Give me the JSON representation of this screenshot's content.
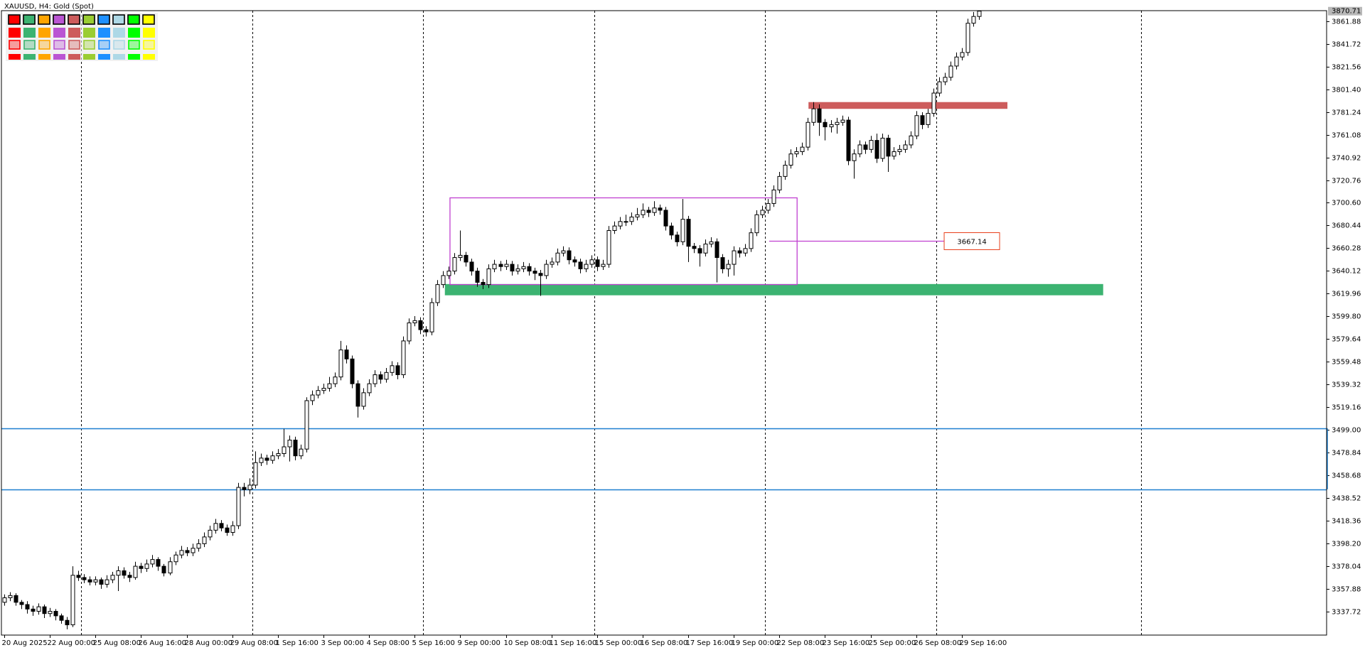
{
  "chart_data": {
    "type": "candlestick",
    "title": "XAUUSD, H4:  Gold (Spot)",
    "ohlc": [
      [
        3346,
        3353,
        3343,
        3350
      ],
      [
        3350,
        3355,
        3347,
        3352
      ],
      [
        3352,
        3354,
        3343,
        3346
      ],
      [
        3346,
        3348,
        3340,
        3344
      ],
      [
        3344,
        3347,
        3336,
        3340
      ],
      [
        3340,
        3343,
        3334,
        3338
      ],
      [
        3338,
        3345,
        3335,
        3342
      ],
      [
        3342,
        3344,
        3332,
        3336
      ],
      [
        3336,
        3341,
        3333,
        3338
      ],
      [
        3338,
        3340,
        3330,
        3334
      ],
      [
        3334,
        3336,
        3327,
        3330
      ],
      [
        3330,
        3333,
        3322,
        3326
      ],
      [
        3326,
        3378,
        3324,
        3370
      ],
      [
        3370,
        3374,
        3365,
        3368
      ],
      [
        3368,
        3371,
        3363,
        3366
      ],
      [
        3366,
        3369,
        3361,
        3364
      ],
      [
        3364,
        3369,
        3361,
        3366
      ],
      [
        3366,
        3368,
        3358,
        3362
      ],
      [
        3362,
        3370,
        3359,
        3366
      ],
      [
        3366,
        3373,
        3363,
        3370
      ],
      [
        3370,
        3378,
        3356,
        3374
      ],
      [
        3374,
        3377,
        3367,
        3370
      ],
      [
        3370,
        3373,
        3364,
        3368
      ],
      [
        3368,
        3382,
        3366,
        3378
      ],
      [
        3378,
        3381,
        3372,
        3376
      ],
      [
        3376,
        3384,
        3373,
        3380
      ],
      [
        3380,
        3388,
        3377,
        3384
      ],
      [
        3384,
        3386,
        3374,
        3378
      ],
      [
        3378,
        3380,
        3369,
        3372
      ],
      [
        3372,
        3386,
        3370,
        3382
      ],
      [
        3382,
        3391,
        3379,
        3388
      ],
      [
        3388,
        3396,
        3385,
        3392
      ],
      [
        3392,
        3395,
        3387,
        3390
      ],
      [
        3390,
        3398,
        3387,
        3394
      ],
      [
        3394,
        3402,
        3391,
        3398
      ],
      [
        3398,
        3408,
        3395,
        3404
      ],
      [
        3404,
        3414,
        3401,
        3410
      ],
      [
        3410,
        3420,
        3407,
        3416
      ],
      [
        3416,
        3419,
        3409,
        3412
      ],
      [
        3412,
        3415,
        3405,
        3408
      ],
      [
        3408,
        3418,
        3405,
        3414
      ],
      [
        3414,
        3452,
        3411,
        3448
      ],
      [
        3448,
        3452,
        3440,
        3446
      ],
      [
        3446,
        3456,
        3442,
        3450
      ],
      [
        3450,
        3480,
        3447,
        3470
      ],
      [
        3470,
        3478,
        3467,
        3474
      ],
      [
        3474,
        3477,
        3468,
        3472
      ],
      [
        3472,
        3480,
        3469,
        3476
      ],
      [
        3476,
        3482,
        3473,
        3478
      ],
      [
        3478,
        3500,
        3475,
        3484
      ],
      [
        3484,
        3494,
        3471,
        3490
      ],
      [
        3490,
        3493,
        3472,
        3476
      ],
      [
        3476,
        3486,
        3473,
        3482
      ],
      [
        3482,
        3528,
        3479,
        3525
      ],
      [
        3525,
        3534,
        3521,
        3530
      ],
      [
        3530,
        3538,
        3527,
        3534
      ],
      [
        3534,
        3540,
        3531,
        3536
      ],
      [
        3536,
        3546,
        3533,
        3540
      ],
      [
        3540,
        3550,
        3537,
        3546
      ],
      [
        3546,
        3578,
        3543,
        3570
      ],
      [
        3570,
        3574,
        3558,
        3562
      ],
      [
        3562,
        3565,
        3536,
        3540
      ],
      [
        3540,
        3543,
        3510,
        3520
      ],
      [
        3520,
        3536,
        3517,
        3532
      ],
      [
        3532,
        3544,
        3529,
        3540
      ],
      [
        3540,
        3552,
        3537,
        3548
      ],
      [
        3548,
        3551,
        3540,
        3544
      ],
      [
        3544,
        3554,
        3541,
        3550
      ],
      [
        3550,
        3560,
        3547,
        3556
      ],
      [
        3556,
        3559,
        3544,
        3548
      ],
      [
        3548,
        3582,
        3545,
        3578
      ],
      [
        3578,
        3598,
        3575,
        3594
      ],
      [
        3594,
        3600,
        3591,
        3596
      ],
      [
        3596,
        3599,
        3584,
        3588
      ],
      [
        3588,
        3591,
        3582,
        3586
      ],
      [
        3586,
        3616,
        3583,
        3612
      ],
      [
        3612,
        3632,
        3609,
        3628
      ],
      [
        3628,
        3640,
        3625,
        3636
      ],
      [
        3636,
        3644,
        3633,
        3640
      ],
      [
        3640,
        3656,
        3637,
        3652
      ],
      [
        3652,
        3676,
        3649,
        3654
      ],
      [
        3654,
        3657,
        3644,
        3648
      ],
      [
        3648,
        3651,
        3636,
        3640
      ],
      [
        3640,
        3643,
        3626,
        3630
      ],
      [
        3630,
        3633,
        3624,
        3628
      ],
      [
        3628,
        3646,
        3625,
        3642
      ],
      [
        3642,
        3650,
        3639,
        3646
      ],
      [
        3646,
        3649,
        3640,
        3644
      ],
      [
        3644,
        3650,
        3641,
        3646
      ],
      [
        3646,
        3649,
        3636,
        3640
      ],
      [
        3640,
        3646,
        3637,
        3642
      ],
      [
        3642,
        3648,
        3639,
        3644
      ],
      [
        3644,
        3647,
        3636,
        3640
      ],
      [
        3640,
        3643,
        3632,
        3638
      ],
      [
        3638,
        3641,
        3618,
        3636
      ],
      [
        3636,
        3650,
        3633,
        3646
      ],
      [
        3646,
        3652,
        3643,
        3648
      ],
      [
        3648,
        3660,
        3645,
        3656
      ],
      [
        3656,
        3662,
        3653,
        3658
      ],
      [
        3658,
        3661,
        3646,
        3650
      ],
      [
        3650,
        3653,
        3644,
        3648
      ],
      [
        3648,
        3651,
        3638,
        3642
      ],
      [
        3642,
        3650,
        3639,
        3646
      ],
      [
        3646,
        3654,
        3643,
        3650
      ],
      [
        3650,
        3653,
        3640,
        3644
      ],
      [
        3644,
        3650,
        3641,
        3646
      ],
      [
        3646,
        3680,
        3643,
        3676
      ],
      [
        3676,
        3684,
        3673,
        3680
      ],
      [
        3680,
        3688,
        3677,
        3684
      ],
      [
        3684,
        3690,
        3680,
        3684
      ],
      [
        3684,
        3692,
        3681,
        3688
      ],
      [
        3688,
        3696,
        3685,
        3690
      ],
      [
        3690,
        3700,
        3687,
        3694
      ],
      [
        3694,
        3697,
        3688,
        3692
      ],
      [
        3692,
        3702,
        3689,
        3696
      ],
      [
        3696,
        3699,
        3690,
        3694
      ],
      [
        3694,
        3697,
        3676,
        3680
      ],
      [
        3680,
        3683,
        3668,
        3672
      ],
      [
        3672,
        3675,
        3662,
        3666
      ],
      [
        3666,
        3704,
        3663,
        3686
      ],
      [
        3686,
        3689,
        3648,
        3662
      ],
      [
        3662,
        3665,
        3656,
        3660
      ],
      [
        3660,
        3663,
        3644,
        3656
      ],
      [
        3656,
        3668,
        3653,
        3664
      ],
      [
        3664,
        3670,
        3661,
        3666
      ],
      [
        3666,
        3669,
        3630,
        3652
      ],
      [
        3652,
        3655,
        3638,
        3642
      ],
      [
        3642,
        3650,
        3635,
        3646
      ],
      [
        3646,
        3662,
        3636,
        3658
      ],
      [
        3658,
        3661,
        3652,
        3656
      ],
      [
        3656,
        3664,
        3653,
        3660
      ],
      [
        3660,
        3678,
        3657,
        3674
      ],
      [
        3674,
        3694,
        3671,
        3690
      ],
      [
        3690,
        3698,
        3687,
        3694
      ],
      [
        3694,
        3704,
        3691,
        3700
      ],
      [
        3700,
        3716,
        3697,
        3712
      ],
      [
        3712,
        3728,
        3709,
        3724
      ],
      [
        3724,
        3738,
        3721,
        3734
      ],
      [
        3734,
        3748,
        3731,
        3744
      ],
      [
        3744,
        3750,
        3741,
        3746
      ],
      [
        3746,
        3754,
        3743,
        3750
      ],
      [
        3750,
        3776,
        3747,
        3772
      ],
      [
        3772,
        3790,
        3769,
        3784
      ],
      [
        3784,
        3788,
        3760,
        3772
      ],
      [
        3772,
        3775,
        3756,
        3768
      ],
      [
        3768,
        3774,
        3763,
        3770
      ],
      [
        3770,
        3776,
        3762,
        3772
      ],
      [
        3772,
        3778,
        3769,
        3774
      ],
      [
        3774,
        3777,
        3734,
        3738
      ],
      [
        3738,
        3748,
        3722,
        3744
      ],
      [
        3744,
        3756,
        3741,
        3752
      ],
      [
        3752,
        3755,
        3744,
        3748
      ],
      [
        3748,
        3760,
        3745,
        3756
      ],
      [
        3756,
        3762,
        3736,
        3740
      ],
      [
        3740,
        3762,
        3737,
        3758
      ],
      [
        3758,
        3761,
        3728,
        3742
      ],
      [
        3742,
        3750,
        3739,
        3746
      ],
      [
        3746,
        3752,
        3743,
        3748
      ],
      [
        3748,
        3756,
        3745,
        3752
      ],
      [
        3752,
        3764,
        3749,
        3760
      ],
      [
        3760,
        3782,
        3757,
        3778
      ],
      [
        3778,
        3781,
        3766,
        3770
      ],
      [
        3770,
        3784,
        3767,
        3780
      ],
      [
        3780,
        3802,
        3777,
        3798
      ],
      [
        3798,
        3812,
        3795,
        3808
      ],
      [
        3808,
        3816,
        3805,
        3812
      ],
      [
        3812,
        3826,
        3809,
        3822
      ],
      [
        3822,
        3834,
        3819,
        3830
      ],
      [
        3830,
        3838,
        3827,
        3834
      ],
      [
        3834,
        3864,
        3831,
        3860
      ],
      [
        3860,
        3870,
        3857,
        3866
      ],
      [
        3866,
        3871,
        3863,
        3870.71
      ]
    ],
    "bull_color": "#ffffff",
    "bear_color": "#000000",
    "xlim": [
      -0.5,
      232
    ],
    "ylim": [
      3316.9,
      3871.15
    ],
    "xticks": [
      {
        "value": 0,
        "label": "20 Aug 2025"
      },
      {
        "value": 8,
        "label": "22 Aug 00:00"
      },
      {
        "value": 16,
        "label": "25 Aug 08:00"
      },
      {
        "value": 24,
        "label": "26 Aug 16:00"
      },
      {
        "value": 32,
        "label": "28 Aug 00:00"
      },
      {
        "value": 40,
        "label": "29 Aug 08:00"
      },
      {
        "value": 48,
        "label": "1 Sep 16:00"
      },
      {
        "value": 56,
        "label": "3 Sep 00:00"
      },
      {
        "value": 64,
        "label": "4 Sep 08:00"
      },
      {
        "value": 72,
        "label": "5 Sep 16:00"
      },
      {
        "value": 80,
        "label": "9 Sep 00:00"
      },
      {
        "value": 88,
        "label": "10 Sep 08:00"
      },
      {
        "value": 96,
        "label": "11 Sep 16:00"
      },
      {
        "value": 104,
        "label": "15 Sep 00:00"
      },
      {
        "value": 112,
        "label": "16 Sep 08:00"
      },
      {
        "value": 120,
        "label": "17 Sep 16:00"
      },
      {
        "value": 128,
        "label": "19 Sep 00:00"
      },
      {
        "value": 136,
        "label": "22 Sep 08:00"
      },
      {
        "value": 144,
        "label": "23 Sep 16:00"
      },
      {
        "value": 152,
        "label": "25 Sep 00:00"
      },
      {
        "value": 160,
        "label": "26 Sep 08:00"
      },
      {
        "value": 168,
        "label": "29 Sep 16:00"
      }
    ],
    "yticks": [
      3861.88,
      3841.72,
      3821.56,
      {
        "value": 3801.4,
        "label": "3801.40"
      },
      3781.24,
      3761.08,
      3740.92,
      3720.76,
      {
        "value": 3700.6,
        "label": "3700.60"
      },
      3680.44,
      3660.28,
      3640.12,
      3619.96,
      {
        "value": 3599.8,
        "label": "3599.80"
      },
      3579.64,
      3559.48,
      3539.32,
      3519.16,
      {
        "value": 3499,
        "label": "3499.00"
      },
      3478.84,
      3458.68,
      3438.52,
      3418.36,
      {
        "value": 3398.2,
        "label": "3398.20"
      },
      3378.04,
      3357.88,
      3337.72
    ],
    "separators": [
      13.5,
      43.5,
      73.5,
      103.5,
      133.5,
      163.5,
      199.5
    ],
    "zones": [
      {
        "color": "#3cb371",
        "ylim": [
          3618.5,
          3628.5
        ],
        "xlim": [
          77.3,
          192.8
        ]
      },
      {
        "color": "#cd5c5c",
        "ylim": [
          3784,
          3790
        ],
        "xlim": [
          141.1,
          176
        ]
      }
    ],
    "box": {
      "color": "#c040d0",
      "ylim": [
        3628,
        3705
      ],
      "xlim": [
        78.2,
        139.1
      ]
    },
    "hlines": {
      "color": "#1e7fd0",
      "values": [
        3500.4,
        3446.3
      ]
    },
    "price_line": {
      "value": 3667.14,
      "xlim": [
        134.2,
        164.9
      ],
      "color": "#c040d0",
      "label_color": "#e8401c"
    }
  }
}
